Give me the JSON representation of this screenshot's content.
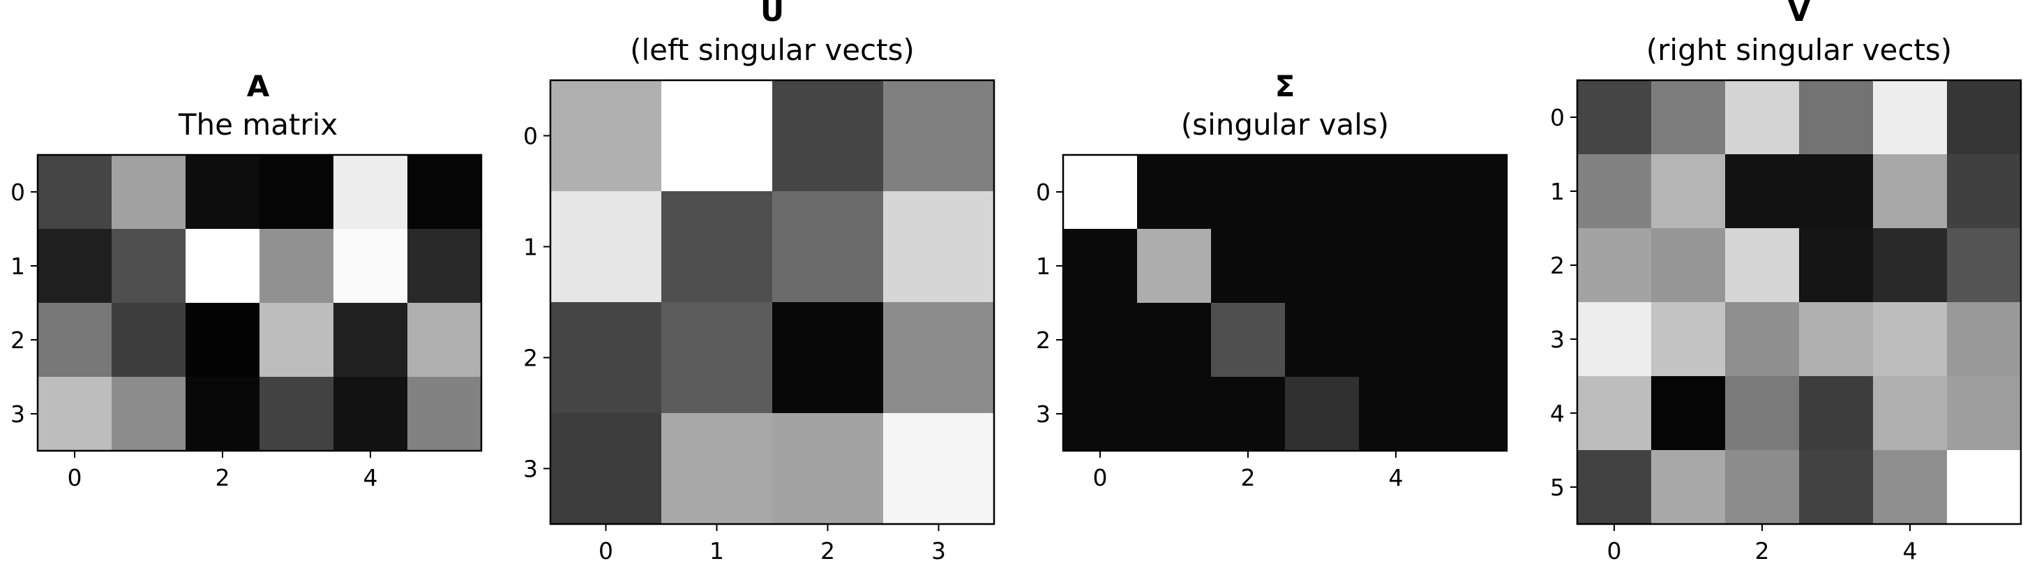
{
  "chart_data": [
    {
      "type": "heatmap",
      "title": "A",
      "subtitle": "The matrix",
      "colormap": "gray",
      "rows": 4,
      "cols": 6,
      "xticks": [
        0,
        2,
        4
      ],
      "yticks": [
        0,
        1,
        2,
        3
      ],
      "values": [
        [
          0.27,
          0.63,
          0.05,
          0.02,
          0.93,
          0.02
        ],
        [
          0.12,
          0.31,
          1.0,
          0.57,
          0.98,
          0.16
        ],
        [
          0.47,
          0.24,
          0.01,
          0.74,
          0.13,
          0.69
        ],
        [
          0.74,
          0.55,
          0.03,
          0.26,
          0.07,
          0.51
        ]
      ]
    },
    {
      "type": "heatmap",
      "title": "U",
      "subtitle": "(left singular vects)",
      "colormap": "gray",
      "rows": 4,
      "cols": 4,
      "xticks": [
        0,
        1,
        2,
        3
      ],
      "yticks": [
        0,
        1,
        2,
        3
      ],
      "values": [
        [
          0.69,
          1.0,
          0.27,
          0.5
        ],
        [
          0.9,
          0.31,
          0.42,
          0.84
        ],
        [
          0.27,
          0.36,
          0.03,
          0.55
        ],
        [
          0.24,
          0.66,
          0.64,
          0.96
        ]
      ]
    },
    {
      "type": "heatmap",
      "title": "Σ",
      "subtitle": "(singular vals)",
      "colormap": "gray",
      "rows": 4,
      "cols": 6,
      "xticks": [
        0,
        2,
        4
      ],
      "yticks": [
        0,
        1,
        2,
        3
      ],
      "values": [
        [
          1.0,
          0.04,
          0.04,
          0.04,
          0.04,
          0.04
        ],
        [
          0.04,
          0.68,
          0.04,
          0.04,
          0.04,
          0.04
        ],
        [
          0.04,
          0.04,
          0.31,
          0.04,
          0.04,
          0.04
        ],
        [
          0.04,
          0.04,
          0.04,
          0.19,
          0.04,
          0.04
        ]
      ]
    },
    {
      "type": "heatmap",
      "title": "V",
      "subtitle": "(right singular vects)",
      "colormap": "gray",
      "rows": 6,
      "cols": 6,
      "xticks": [
        0,
        2,
        4
      ],
      "yticks": [
        0,
        1,
        2,
        3,
        4,
        5
      ],
      "values": [
        [
          0.27,
          0.49,
          0.83,
          0.45,
          0.93,
          0.21
        ],
        [
          0.51,
          0.71,
          0.07,
          0.07,
          0.66,
          0.25
        ],
        [
          0.64,
          0.59,
          0.84,
          0.08,
          0.16,
          0.33
        ],
        [
          0.93,
          0.77,
          0.56,
          0.69,
          0.74,
          0.6
        ],
        [
          0.74,
          0.02,
          0.48,
          0.24,
          0.69,
          0.62
        ],
        [
          0.26,
          0.66,
          0.55,
          0.26,
          0.56,
          1.0
        ]
      ]
    }
  ]
}
